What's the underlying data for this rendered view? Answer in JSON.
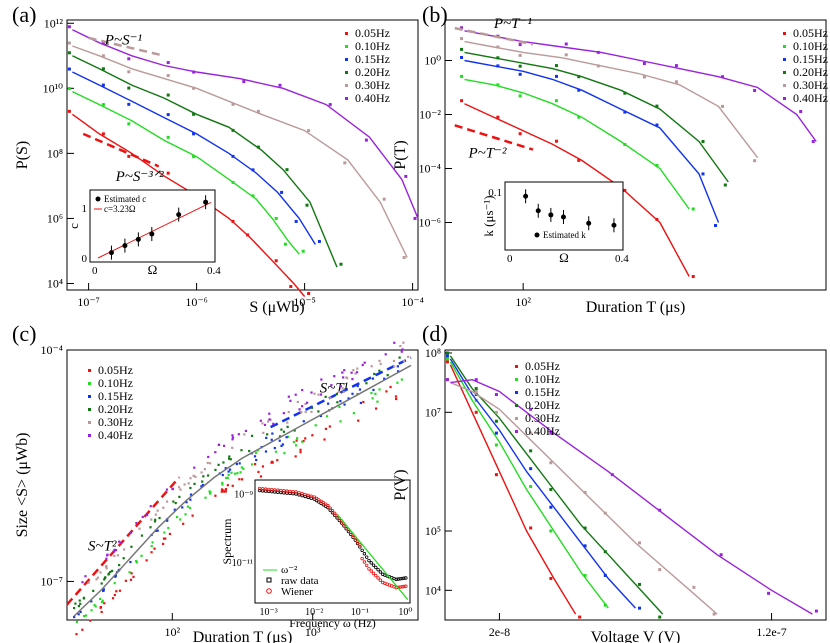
{
  "colors": {
    "red": "#ee1111",
    "green": "#22dd22",
    "blue": "#1133ee",
    "dgreen": "#117711",
    "tan": "#bb9999",
    "purple": "#9922dd",
    "black": "#000000"
  },
  "chart_data": [
    {
      "id": "a",
      "panel_label": "(a)",
      "type": "line",
      "xlabel": "S (μWb)",
      "ylabel": "P(S)",
      "xscale": "log",
      "yscale": "log",
      "xlim_log": [
        -7.2,
        -3.95
      ],
      "ylim_log": [
        3.8,
        12.1
      ],
      "xticks": [
        {
          "v": -7,
          "label": "10⁻⁷"
        },
        {
          "v": -6,
          "label": "10⁻⁶"
        },
        {
          "v": -5,
          "label": "10⁻⁵"
        },
        {
          "v": -4,
          "label": "10⁻⁴"
        }
      ],
      "yticks": [
        {
          "v": 4,
          "label": "10⁴"
        },
        {
          "v": 6,
          "label": "10⁶"
        },
        {
          "v": 8,
          "label": "10⁸"
        },
        {
          "v": 10,
          "label": "10¹⁰"
        },
        {
          "v": 12,
          "label": "10¹²"
        }
      ],
      "legend": [
        "0.05Hz",
        "0.10Hz",
        "0.15Hz",
        "0.20Hz",
        "0.30Hz",
        "0.40Hz"
      ],
      "annotations": [
        {
          "text": "P~S⁻¹",
          "color": "tan",
          "line": [
            [
              -7.0,
              11.55
            ],
            [
              -6.3,
              11.0
            ]
          ],
          "at": [
            -6.85,
            11.35
          ]
        },
        {
          "text": "P~S⁻³ᐟ²",
          "color": "red",
          "line": [
            [
              -7.05,
              8.6
            ],
            [
              -6.35,
              7.6
            ]
          ],
          "at": [
            -6.75,
            7.15
          ]
        }
      ],
      "series": [
        {
          "name": "0.05Hz",
          "color": "red",
          "x": [
            -7.15,
            -6.9,
            -6.6,
            -6.3,
            -6.0,
            -5.7,
            -5.5,
            -5.3,
            -5.1,
            -5.0
          ],
          "y": [
            9.2,
            8.6,
            8.0,
            7.3,
            6.7,
            6.0,
            5.4,
            4.7,
            4.0,
            3.6
          ]
        },
        {
          "name": "0.10Hz",
          "color": "green",
          "x": [
            -7.15,
            -6.9,
            -6.6,
            -6.3,
            -6.0,
            -5.7,
            -5.45,
            -5.3,
            -5.15,
            -5.05
          ],
          "y": [
            9.9,
            9.5,
            9.0,
            8.4,
            7.9,
            7.2,
            6.6,
            6.0,
            5.3,
            4.9
          ]
        },
        {
          "name": "0.15Hz",
          "color": "blue",
          "x": [
            -7.15,
            -6.9,
            -6.6,
            -6.3,
            -6.0,
            -5.7,
            -5.45,
            -5.25,
            -5.05,
            -4.9
          ],
          "y": [
            10.5,
            10.1,
            9.6,
            9.1,
            8.6,
            8.0,
            7.4,
            6.8,
            6.0,
            5.2
          ]
        },
        {
          "name": "0.20Hz",
          "color": "dgreen",
          "x": [
            -7.15,
            -6.9,
            -6.6,
            -6.3,
            -6.0,
            -5.7,
            -5.4,
            -5.2,
            -4.95,
            -4.7
          ],
          "y": [
            11.0,
            10.6,
            10.1,
            9.7,
            9.2,
            8.8,
            8.1,
            7.5,
            6.5,
            4.5
          ]
        },
        {
          "name": "0.30Hz",
          "color": "tan",
          "x": [
            -7.15,
            -6.9,
            -6.6,
            -6.3,
            -6.0,
            -5.7,
            -5.4,
            -5.0,
            -4.6,
            -4.3,
            -4.05
          ],
          "y": [
            11.3,
            11.0,
            10.6,
            10.3,
            10.0,
            9.6,
            9.2,
            8.7,
            7.8,
            6.5,
            4.8
          ]
        },
        {
          "name": "0.40Hz",
          "color": "purple",
          "x": [
            -7.15,
            -6.9,
            -6.6,
            -6.3,
            -6.0,
            -5.6,
            -5.2,
            -4.8,
            -4.4,
            -4.1,
            -3.95
          ],
          "y": [
            11.8,
            11.4,
            11.0,
            10.7,
            10.5,
            10.3,
            10.0,
            9.5,
            8.5,
            7.2,
            6.0
          ]
        }
      ],
      "inset": {
        "legend": [
          "Estimated c",
          "c=3.23Ω"
        ],
        "xlabel": "Ω",
        "ylabel": "c",
        "xticks": [
          "0",
          "0.4"
        ],
        "yticks": [
          "0",
          "1"
        ],
        "points_x": [
          0.05,
          0.1,
          0.15,
          0.2,
          0.3,
          0.4
        ],
        "points_y": [
          0.13,
          0.3,
          0.45,
          0.58,
          1.05,
          1.35
        ],
        "fit_slope": 3.23
      }
    },
    {
      "id": "b",
      "panel_label": "(b)",
      "type": "line",
      "xlabel": "Duration T  (μs)",
      "ylabel": "P(T)",
      "xscale": "log",
      "yscale": "log",
      "xlim_log": [
        1.6,
        3.55
      ],
      "ylim_log": [
        -8.5,
        1.5
      ],
      "xticks": [
        {
          "v": 2,
          "label": "10²"
        }
      ],
      "yticks": [
        {
          "v": 0,
          "label": "10⁰"
        },
        {
          "v": -2,
          "label": "10⁻²"
        },
        {
          "v": -4,
          "label": "10⁻⁴"
        },
        {
          "v": -6,
          "label": "10⁻⁶"
        }
      ],
      "legend": [
        "0.05Hz",
        "0.10Hz",
        "0.15Hz",
        "0.20Hz",
        "0.30Hz",
        "0.40Hz"
      ],
      "annotations": [
        {
          "text": "P~T⁻¹",
          "color": "tan",
          "line": [
            [
              1.65,
              1.2
            ],
            [
              2.05,
              0.6
            ]
          ],
          "at": [
            1.85,
            1.2
          ]
        },
        {
          "text": "P~T⁻²",
          "color": "red",
          "line": [
            [
              1.65,
              -2.4
            ],
            [
              2.05,
              -3.3
            ]
          ],
          "at": [
            1.72,
            -3.6
          ]
        }
      ],
      "series": [
        {
          "name": "0.05Hz",
          "color": "red",
          "x": [
            1.7,
            1.85,
            2.0,
            2.15,
            2.3,
            2.5,
            2.7,
            2.85
          ],
          "y": [
            -1.6,
            -2.1,
            -2.6,
            -3.1,
            -3.7,
            -4.7,
            -6.0,
            -8.0
          ]
        },
        {
          "name": "0.10Hz",
          "color": "green",
          "x": [
            1.7,
            1.85,
            2.0,
            2.15,
            2.3,
            2.5,
            2.7,
            2.85
          ],
          "y": [
            -0.7,
            -0.9,
            -1.2,
            -1.6,
            -2.1,
            -3.0,
            -4.0,
            -5.5
          ]
        },
        {
          "name": "0.15Hz",
          "color": "blue",
          "x": [
            1.7,
            1.85,
            2.0,
            2.15,
            2.3,
            2.5,
            2.7,
            2.9,
            3.0
          ],
          "y": [
            0.0,
            -0.2,
            -0.4,
            -0.7,
            -1.1,
            -1.8,
            -2.5,
            -4.2,
            -6.0
          ]
        },
        {
          "name": "0.20Hz",
          "color": "dgreen",
          "x": [
            1.7,
            1.85,
            2.0,
            2.15,
            2.3,
            2.5,
            2.7,
            2.9,
            3.05
          ],
          "y": [
            0.3,
            0.1,
            -0.1,
            -0.3,
            -0.6,
            -1.1,
            -1.8,
            -3.0,
            -4.5
          ]
        },
        {
          "name": "0.30Hz",
          "color": "tan",
          "x": [
            1.7,
            1.85,
            2.0,
            2.2,
            2.4,
            2.6,
            2.8,
            3.0,
            3.2
          ],
          "y": [
            0.7,
            0.5,
            0.3,
            0.1,
            -0.2,
            -0.5,
            -0.9,
            -1.7,
            -3.6
          ]
        },
        {
          "name": "0.40Hz",
          "color": "purple",
          "x": [
            1.7,
            1.85,
            2.0,
            2.2,
            2.4,
            2.6,
            2.8,
            3.0,
            3.2,
            3.4,
            3.5
          ],
          "y": [
            1.1,
            0.9,
            0.7,
            0.5,
            0.3,
            0.0,
            -0.3,
            -0.6,
            -1.0,
            -2.0,
            -3.0
          ]
        }
      ],
      "inset": {
        "legend": [
          "Estimated k"
        ],
        "xlabel": "Ω",
        "ylabel": "k (μs⁻¹)",
        "xticks": [
          "0",
          "0.4"
        ],
        "yticks": [
          "0.1"
        ],
        "points_x": [
          0.05,
          0.1,
          0.15,
          0.2,
          0.3,
          0.4
        ],
        "points_y": [
          0.12,
          0.085,
          0.075,
          0.07,
          0.055,
          0.05
        ]
      }
    },
    {
      "id": "c",
      "panel_label": "(c)",
      "type": "scatter",
      "xlabel": "Duration T (μs)",
      "ylabel": "Size <S>  (μWb)",
      "xscale": "log",
      "yscale": "log",
      "xlim_log": [
        1.25,
        3.75
      ],
      "ylim_log": [
        -7.5,
        -4.0
      ],
      "xticks": [
        {
          "v": 2,
          "label": "10²"
        },
        {
          "v": 3,
          "label": "10³"
        }
      ],
      "yticks": [
        {
          "v": -4,
          "label": "10⁻⁴"
        },
        {
          "v": -7,
          "label": "10⁻⁷"
        }
      ],
      "legend": [
        "0.05Hz",
        "0.10Hz",
        "0.15Hz",
        "0.20Hz",
        "0.30Hz",
        "0.40Hz"
      ],
      "annotations": [
        {
          "text": "S~T²",
          "color": "red",
          "line": [
            [
              1.25,
              -7.3
            ],
            [
              2.05,
              -5.65
            ]
          ],
          "at": [
            1.4,
            -6.6
          ]
        },
        {
          "text": "S~T¹",
          "color": "blue",
          "line": [
            [
              2.7,
              -5.0
            ],
            [
              3.7,
              -4.1
            ]
          ],
          "at": [
            3.05,
            -4.55
          ]
        }
      ],
      "curve": {
        "x": [
          1.3,
          1.5,
          1.7,
          1.9,
          2.1,
          2.3,
          2.5,
          2.7,
          2.9,
          3.1,
          3.3,
          3.5,
          3.7
        ],
        "y": [
          -7.45,
          -7.1,
          -6.7,
          -6.3,
          -5.95,
          -5.65,
          -5.4,
          -5.2,
          -5.0,
          -4.8,
          -4.6,
          -4.4,
          -4.2
        ]
      },
      "inset": {
        "xlabel": "Frequency ω (Hz)",
        "ylabel": "Spectrum",
        "legend": [
          "ω⁻²",
          "raw data",
          "Wiener"
        ],
        "xticks": [
          {
            "v": -3,
            "label": "10⁻³"
          },
          {
            "v": -2,
            "label": "10⁻²"
          },
          {
            "v": -1,
            "label": "10⁻¹"
          },
          {
            "v": 0,
            "label": "10⁰"
          }
        ],
        "yticks": [
          {
            "v": -9,
            "label": "10⁻⁹"
          },
          {
            "v": -11,
            "label": "10⁻¹¹"
          }
        ],
        "xlim_log": [
          -3.3,
          0.1
        ],
        "ylim_log": [
          -12.2,
          -8.6
        ],
        "spectrum_x": [
          -3.2,
          -2.8,
          -2.4,
          -2.0,
          -1.7,
          -1.4,
          -1.1,
          -0.8,
          -0.5,
          -0.2,
          0.05
        ],
        "spectrum_y": [
          -8.85,
          -8.9,
          -8.95,
          -9.1,
          -9.35,
          -9.8,
          -10.3,
          -10.9,
          -11.3,
          -11.45,
          -11.4
        ]
      }
    },
    {
      "id": "d",
      "panel_label": "(d)",
      "type": "line",
      "xlabel": "Voltage V  (V)",
      "ylabel": "P(V)",
      "xscale": "linear",
      "yscale": "log",
      "xlim": [
        0,
        1.4e-07
      ],
      "ylim_log": [
        3.5,
        8.05
      ],
      "xticks": [
        {
          "v": 2e-08,
          "label": "2e-8"
        },
        {
          "v": 1.2e-07,
          "label": "1.2e-7"
        }
      ],
      "yticks": [
        {
          "v": 4,
          "label": "10⁴"
        },
        {
          "v": 5,
          "label": "10⁵"
        },
        {
          "v": 7,
          "label": "10⁷"
        },
        {
          "v": 8,
          "label": "10⁸"
        }
      ],
      "legend": [
        "0.05Hz",
        "0.10Hz",
        "0.15Hz",
        "0.20Hz",
        "0.30Hz",
        "0.40Hz"
      ],
      "series": [
        {
          "name": "0.05Hz",
          "color": "red",
          "x": [
            2e-09,
            1e-08,
            2e-08,
            3e-08,
            4e-08,
            4.8e-08
          ],
          "y": [
            7.8,
            7.0,
            6.0,
            5.0,
            4.2,
            3.6
          ]
        },
        {
          "name": "0.10Hz",
          "color": "green",
          "x": [
            2e-09,
            1e-08,
            2e-08,
            3e-08,
            4e-08,
            5e-08,
            6e-08
          ],
          "y": [
            7.85,
            7.2,
            6.5,
            5.7,
            5.0,
            4.3,
            3.7
          ]
        },
        {
          "name": "0.15Hz",
          "color": "blue",
          "x": [
            2e-09,
            1e-08,
            2e-08,
            3e-08,
            4e-08,
            5e-08,
            6e-08,
            7e-08
          ],
          "y": [
            7.9,
            7.3,
            6.7,
            6.0,
            5.4,
            4.8,
            4.2,
            3.7
          ]
        },
        {
          "name": "0.20Hz",
          "color": "dgreen",
          "x": [
            2e-09,
            1e-08,
            2e-08,
            3e-08,
            4e-08,
            5e-08,
            6e-08,
            7e-08,
            8e-08
          ],
          "y": [
            7.95,
            7.4,
            6.9,
            6.3,
            5.7,
            5.1,
            4.6,
            4.1,
            3.6
          ]
        },
        {
          "name": "0.30Hz",
          "color": "tan",
          "x": [
            2e-09,
            1e-08,
            2e-08,
            3e-08,
            4e-08,
            5e-08,
            6e-08,
            7e-08,
            8e-08,
            9e-08,
            1e-07
          ],
          "y": [
            7.5,
            7.35,
            7.05,
            6.6,
            6.15,
            5.7,
            5.25,
            4.8,
            4.4,
            4.0,
            3.6
          ]
        },
        {
          "name": "0.40Hz",
          "color": "purple",
          "x": [
            2e-09,
            1e-08,
            2e-08,
            3e-08,
            4e-08,
            6e-08,
            8e-08,
            1e-07,
            1.2e-07,
            1.35e-07
          ],
          "y": [
            7.5,
            7.55,
            7.35,
            7.0,
            6.65,
            6.0,
            5.3,
            4.6,
            4.0,
            3.6
          ]
        }
      ]
    }
  ]
}
